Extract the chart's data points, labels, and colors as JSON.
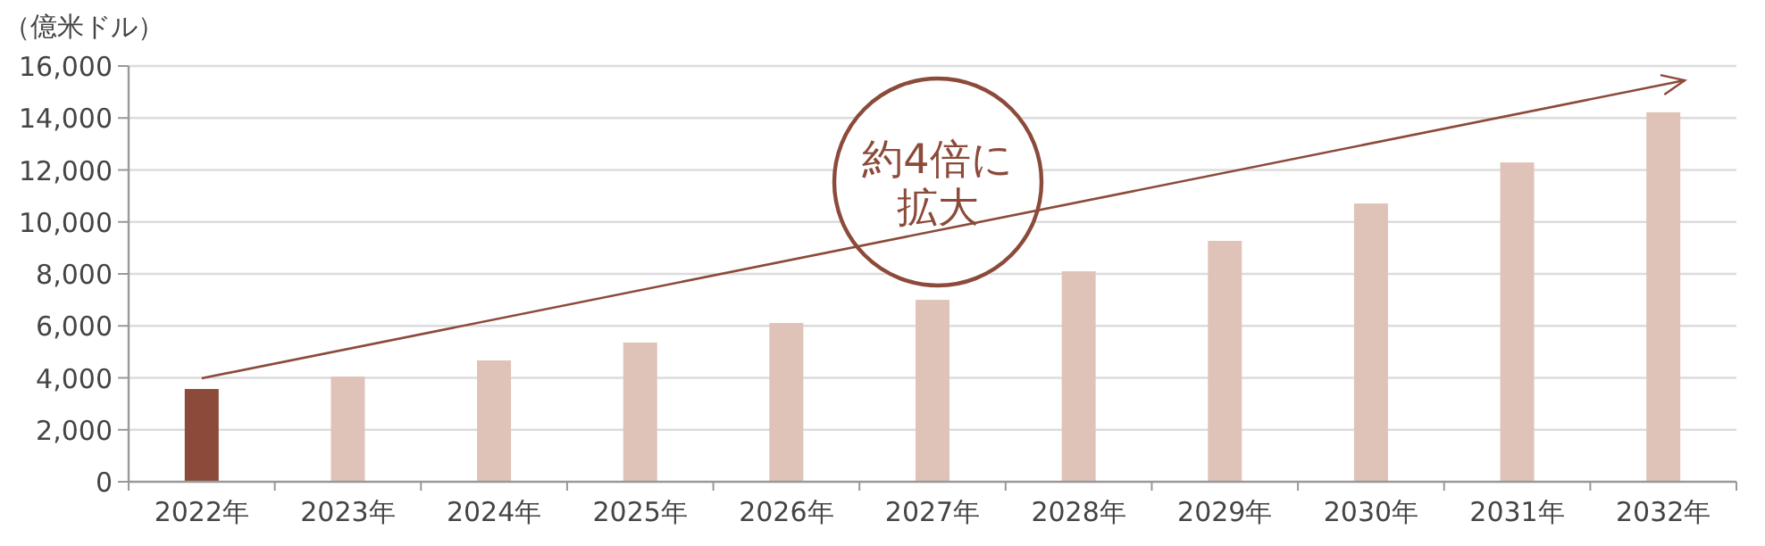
{
  "chart_data": {
    "type": "bar",
    "ylabel": "（億米ドル）",
    "categories": [
      "2022年",
      "2023年",
      "2024年",
      "2025年",
      "2026年",
      "2027年",
      "2028年",
      "2029年",
      "2030年",
      "2031年",
      "2032年"
    ],
    "values": [
      3570,
      4050,
      4670,
      5360,
      6110,
      7000,
      8100,
      9270,
      10710,
      12290,
      14220
    ],
    "colors": [
      "#8b4a3a",
      "#dfc3b8",
      "#dfc3b8",
      "#dfc3b8",
      "#dfc3b8",
      "#dfc3b8",
      "#dfc3b8",
      "#dfc3b8",
      "#dfc3b8",
      "#dfc3b8",
      "#dfc3b8"
    ],
    "ylim": [
      0,
      16000
    ],
    "yticks": [
      {
        "value": 0,
        "label": "0"
      },
      {
        "value": 2000,
        "label": "2,000"
      },
      {
        "value": 4000,
        "label": "4,000"
      },
      {
        "value": 6000,
        "label": "6,000"
      },
      {
        "value": 8000,
        "label": "8,000"
      },
      {
        "value": 10000,
        "label": "10,000"
      },
      {
        "value": 12000,
        "label": "12,000"
      },
      {
        "value": 14000,
        "label": "14,000"
      },
      {
        "value": 16000,
        "label": "16,000"
      }
    ],
    "grid": "y",
    "annotations": [
      "約4倍に拡大"
    ]
  }
}
